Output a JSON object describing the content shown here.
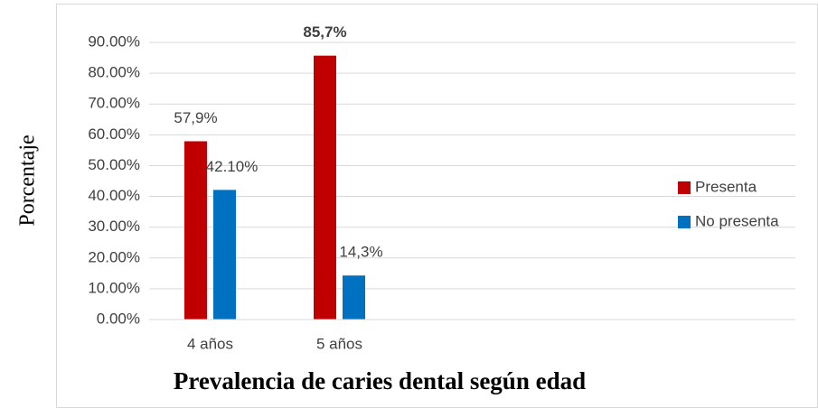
{
  "chart_data": {
    "type": "bar",
    "title": "Prevalencia de caries dental según edad",
    "y_label": "Porcentaje",
    "categories": [
      "4 años",
      "5 años",
      null,
      null,
      null
    ],
    "series": [
      {
        "name": "Presenta",
        "color": "#c00000",
        "values": [
          57.9,
          85.7,
          null,
          null,
          null
        ],
        "value_labels": [
          "57,9%",
          "85,7%",
          null,
          null,
          null
        ],
        "bold_labels": [
          false,
          true,
          false,
          false,
          false
        ]
      },
      {
        "name": "No presenta",
        "color": "#0070c0",
        "values": [
          42.1,
          14.3,
          null,
          null,
          null
        ],
        "value_labels": [
          "42.10%",
          "14,3%",
          null,
          null,
          null
        ],
        "bold_labels": [
          false,
          false,
          false,
          false,
          false
        ]
      }
    ],
    "ylim": [
      0,
      90
    ],
    "yticks": [
      {
        "value": 0,
        "label": "0.00%"
      },
      {
        "value": 10,
        "label": "10.00%"
      },
      {
        "value": 20,
        "label": "20.00%"
      },
      {
        "value": 30,
        "label": "30.00%"
      },
      {
        "value": 40,
        "label": "40.00%"
      },
      {
        "value": 50,
        "label": "50.00%"
      },
      {
        "value": 60,
        "label": "60.00%"
      },
      {
        "value": 70,
        "label": "70.00%"
      },
      {
        "value": 80,
        "label": "80.00%"
      },
      {
        "value": 90,
        "label": "90.00%"
      }
    ],
    "grid": true,
    "legend": "right"
  }
}
